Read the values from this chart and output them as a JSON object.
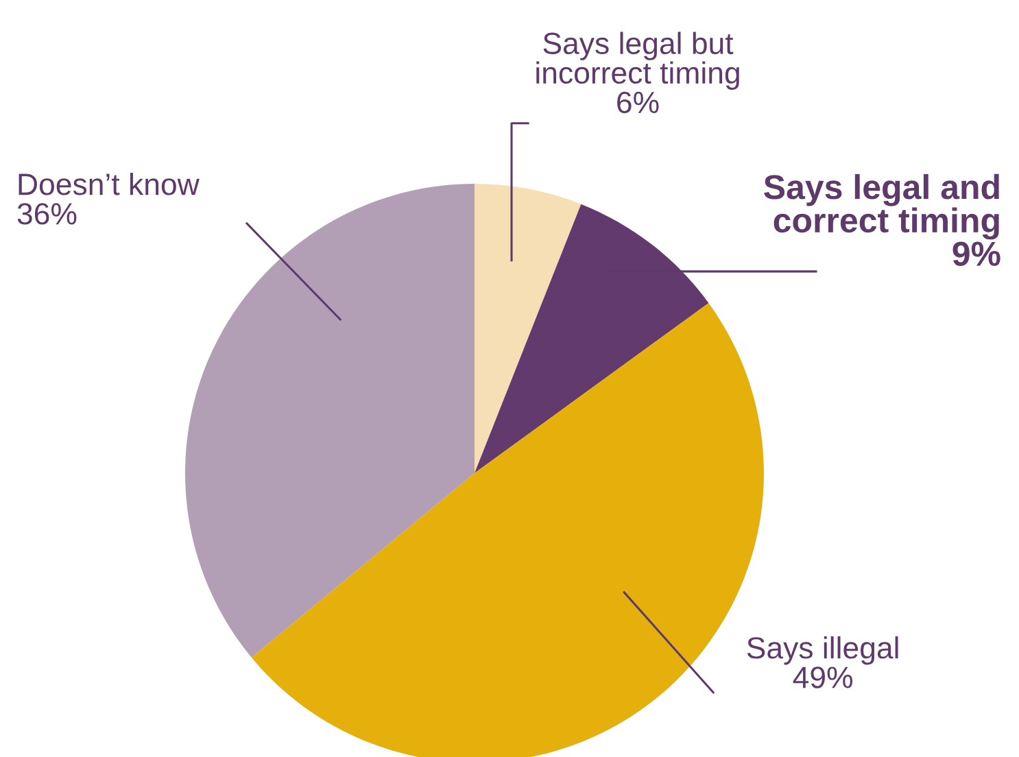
{
  "chart_data": {
    "type": "pie",
    "categories": [
      "Says legal but\nincorrect timing",
      "Says legal and\ncorrect timing",
      "Says illegal",
      "Doesn’t know"
    ],
    "values": [
      6,
      9,
      49,
      36
    ],
    "value_labels": [
      "6%",
      "9%",
      "49%",
      "36%"
    ],
    "colors": [
      "#f6dfb4",
      "#633a6e",
      "#e6b00c",
      "#b39fb5"
    ]
  }
}
